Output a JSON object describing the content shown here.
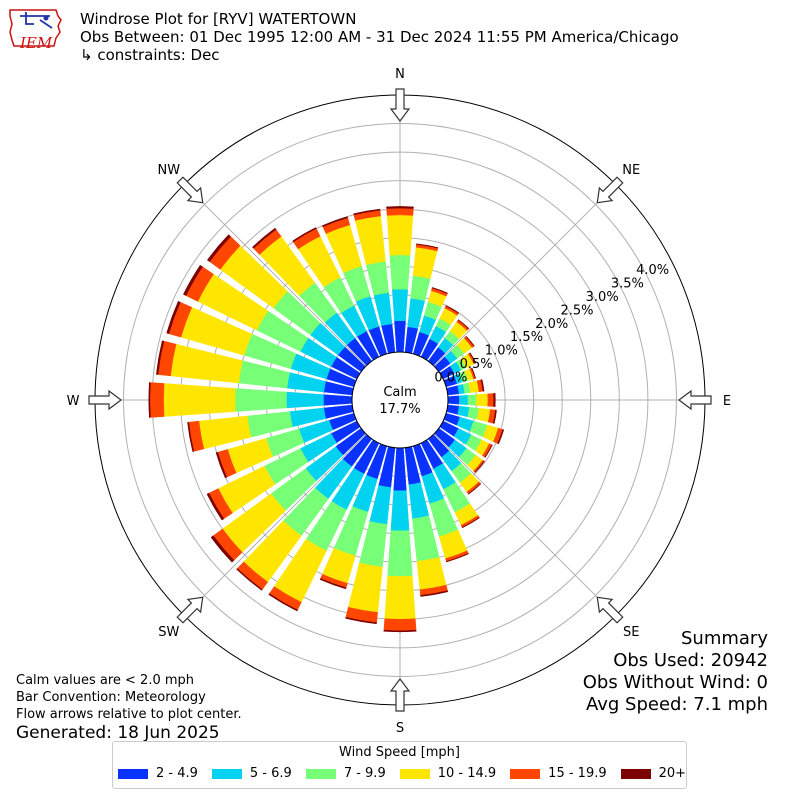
{
  "header": {
    "title": "Windrose Plot for [RYV] WATERTOWN",
    "subtitle": "Obs Between: 01 Dec 1995 12:00 AM - 31 Dec 2024 11:55 PM America/Chicago",
    "constraints": "↳ constraints: Dec"
  },
  "logo": {
    "text": "IEM",
    "icon": "iowa-state-outline-logo"
  },
  "summary": {
    "heading": "Summary",
    "obs_used": "Obs Used: 20942",
    "obs_without_wind": "Obs Without Wind: 0",
    "avg_speed": "Avg Speed: 7.1 mph"
  },
  "notes": {
    "calm": "Calm values are < 2.0 mph",
    "convention": "Bar Convention: Meteorology",
    "arrows": "Flow arrows relative to plot center.",
    "generated": "Generated: 18 Jun 2025"
  },
  "legend": {
    "title": "Wind Speed [mph]",
    "items": [
      {
        "label": "2 - 4.9",
        "color": "#0a32ff"
      },
      {
        "label": "5 - 6.9",
        "color": "#00d2f0"
      },
      {
        "label": "7 - 9.9",
        "color": "#78ff78"
      },
      {
        "label": "10 - 14.9",
        "color": "#ffe600"
      },
      {
        "label": "15 - 19.9",
        "color": "#ff4600"
      },
      {
        "label": "20+",
        "color": "#7d0000"
      }
    ]
  },
  "chart_data": {
    "type": "windrose",
    "calm_label": "Calm",
    "calm_value": "17.7%",
    "calm_percent": 17.7,
    "radial_ticks": [
      "0.0%",
      "0.5%",
      "1.0%",
      "1.5%",
      "2.0%",
      "2.5%",
      "3.0%",
      "3.5%",
      "4.0%"
    ],
    "radial_tick_values": [
      0,
      0.5,
      1.0,
      1.5,
      2.0,
      2.5,
      3.0,
      3.5,
      4.0
    ],
    "rmax": 4.5,
    "compass_labels": [
      "N",
      "NE",
      "E",
      "SE",
      "S",
      "SW",
      "W",
      "NW"
    ],
    "bins": [
      "2 - 4.9",
      "5 - 6.9",
      "7 - 9.9",
      "10 - 14.9",
      "15 - 19.9",
      "20+"
    ],
    "directions": [
      {
        "dir": 0,
        "cumulative": [
          0.55,
          1.1,
          1.7,
          2.4,
          2.52,
          2.55
        ]
      },
      {
        "dir": 10,
        "cumulative": [
          0.45,
          0.95,
          1.35,
          1.85,
          1.9,
          1.91
        ]
      },
      {
        "dir": 20,
        "cumulative": [
          0.4,
          0.7,
          0.95,
          1.15,
          1.2,
          1.21
        ]
      },
      {
        "dir": 30,
        "cumulative": [
          0.35,
          0.6,
          0.75,
          0.95,
          0.99,
          1.0
        ]
      },
      {
        "dir": 40,
        "cumulative": [
          0.3,
          0.5,
          0.65,
          0.85,
          0.89,
          0.9
        ]
      },
      {
        "dir": 50,
        "cumulative": [
          0.25,
          0.4,
          0.55,
          0.72,
          0.76,
          0.77
        ]
      },
      {
        "dir": 60,
        "cumulative": [
          0.22,
          0.35,
          0.45,
          0.6,
          0.63,
          0.64
        ]
      },
      {
        "dir": 70,
        "cumulative": [
          0.2,
          0.3,
          0.4,
          0.5,
          0.53,
          0.54
        ]
      },
      {
        "dir": 80,
        "cumulative": [
          0.2,
          0.3,
          0.4,
          0.55,
          0.62,
          0.64
        ]
      },
      {
        "dir": 90,
        "cumulative": [
          0.2,
          0.35,
          0.5,
          0.7,
          0.8,
          0.83
        ]
      },
      {
        "dir": 100,
        "cumulative": [
          0.2,
          0.38,
          0.55,
          0.75,
          0.84,
          0.86
        ]
      },
      {
        "dir": 110,
        "cumulative": [
          0.25,
          0.5,
          0.75,
          0.95,
          1.03,
          1.05
        ]
      },
      {
        "dir": 120,
        "cumulative": [
          0.3,
          0.55,
          0.75,
          0.9,
          0.95,
          0.96
        ]
      },
      {
        "dir": 130,
        "cumulative": [
          0.35,
          0.6,
          0.8,
          0.95,
          0.98,
          0.99
        ]
      },
      {
        "dir": 140,
        "cumulative": [
          0.4,
          0.7,
          0.95,
          1.15,
          1.19,
          1.2
        ]
      },
      {
        "dir": 150,
        "cumulative": [
          0.5,
          0.9,
          1.35,
          1.6,
          1.64,
          1.65
        ]
      },
      {
        "dir": 160,
        "cumulative": [
          0.55,
          1.05,
          1.65,
          2.05,
          2.1,
          2.11
        ]
      },
      {
        "dir": 170,
        "cumulative": [
          0.65,
          1.25,
          2.0,
          2.5,
          2.6,
          2.62
        ]
      },
      {
        "dir": 180,
        "cumulative": [
          0.75,
          1.45,
          2.25,
          3.0,
          3.2,
          3.22
        ]
      },
      {
        "dir": 190,
        "cumulative": [
          0.7,
          1.35,
          2.1,
          2.9,
          3.08,
          3.1
        ]
      },
      {
        "dir": 200,
        "cumulative": [
          0.6,
          1.2,
          2.0,
          2.5,
          2.58,
          2.6
        ]
      },
      {
        "dir": 210,
        "cumulative": [
          0.6,
          1.3,
          2.1,
          3.1,
          3.25,
          3.27
        ]
      },
      {
        "dir": 220,
        "cumulative": [
          0.6,
          1.3,
          2.1,
          3.1,
          3.26,
          3.28
        ]
      },
      {
        "dir": 230,
        "cumulative": [
          0.55,
          1.2,
          1.95,
          3.0,
          3.2,
          3.25
        ]
      },
      {
        "dir": 240,
        "cumulative": [
          0.5,
          1.1,
          1.8,
          2.7,
          2.88,
          2.92
        ]
      },
      {
        "dir": 250,
        "cumulative": [
          0.45,
          1.0,
          1.6,
          2.3,
          2.48,
          2.51
        ]
      },
      {
        "dir": 260,
        "cumulative": [
          0.5,
          1.1,
          1.85,
          2.7,
          2.88,
          2.9
        ]
      },
      {
        "dir": 270,
        "cumulative": [
          0.5,
          1.15,
          2.05,
          3.3,
          3.54,
          3.56
        ]
      },
      {
        "dir": 280,
        "cumulative": [
          0.5,
          1.15,
          2.0,
          3.2,
          3.42,
          3.45
        ]
      },
      {
        "dir": 290,
        "cumulative": [
          0.5,
          1.15,
          2.0,
          3.15,
          3.37,
          3.41
        ]
      },
      {
        "dir": 300,
        "cumulative": [
          0.5,
          1.1,
          1.95,
          3.1,
          3.33,
          3.38
        ]
      },
      {
        "dir": 310,
        "cumulative": [
          0.5,
          1.1,
          1.9,
          3.05,
          3.28,
          3.33
        ]
      },
      {
        "dir": 320,
        "cumulative": [
          0.5,
          1.05,
          1.7,
          2.7,
          2.85,
          2.88
        ]
      },
      {
        "dir": 330,
        "cumulative": [
          0.5,
          1.0,
          1.55,
          2.35,
          2.5,
          2.52
        ]
      },
      {
        "dir": 340,
        "cumulative": [
          0.5,
          1.05,
          1.6,
          2.35,
          2.48,
          2.5
        ]
      },
      {
        "dir": 350,
        "cumulative": [
          0.5,
          1.05,
          1.6,
          2.4,
          2.5,
          2.52
        ]
      }
    ]
  }
}
